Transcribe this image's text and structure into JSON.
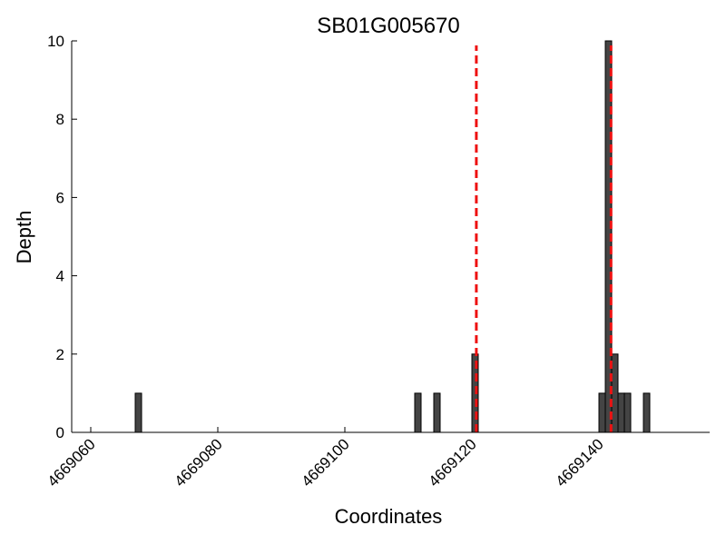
{
  "chart_data": {
    "type": "bar",
    "title": "SB01G005670",
    "xlabel": "Coordinates",
    "ylabel": "Depth",
    "x": [
      4669067,
      4669111,
      4669114,
      4669120,
      4669140,
      4669141,
      4669142,
      4669143,
      4669144,
      4669147
    ],
    "values": [
      1,
      1,
      1,
      2,
      1,
      10,
      2,
      1,
      1,
      1
    ],
    "bar_width": 1,
    "color": "#444444",
    "edge_color": "#000000",
    "vlines": [
      4669120.7,
      4669141.9
    ],
    "vline_color": "#ee1111",
    "xlim": [
      4669057,
      4669157
    ],
    "xticks": [
      4669060,
      4669080,
      4669100,
      4669120,
      4669140
    ],
    "ylim": [
      0,
      10
    ],
    "yticks": [
      0,
      2,
      4,
      6,
      8,
      10
    ],
    "grid": false
  }
}
